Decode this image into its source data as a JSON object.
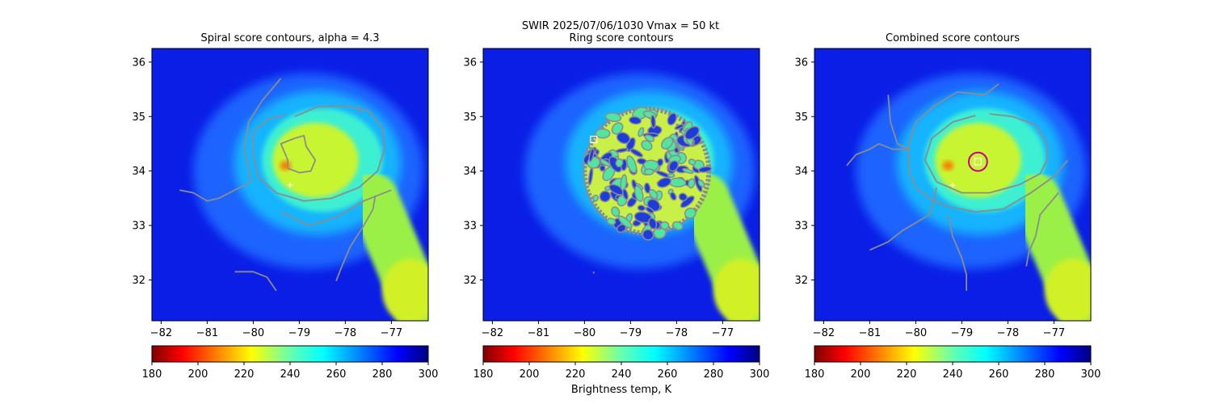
{
  "figure": {
    "suptitle_line1": "SWIR  2025/07/06/1030    Vmax = 50 kt",
    "colorbar_label": "Brightness temp, K"
  },
  "chart_data": [
    {
      "type": "heatmap",
      "title": "Spiral score contours, alpha =  4.3",
      "xlim": [
        -82.2,
        -76.2
      ],
      "ylim": [
        31.25,
        36.25
      ],
      "xticks": [
        -82,
        -81,
        -80,
        -79,
        -78,
        -77
      ],
      "yticks": [
        32,
        33,
        34,
        35,
        36
      ],
      "center": [
        -79.2,
        33.75
      ],
      "center_marker": "plus",
      "contours": [
        [
          [
            -79.1,
            35.0
          ],
          [
            -78.6,
            35.18
          ],
          [
            -78.0,
            35.2
          ],
          [
            -77.5,
            35.1
          ],
          [
            -77.2,
            34.8
          ],
          [
            -77.15,
            34.4
          ],
          [
            -77.3,
            34.0
          ],
          [
            -77.7,
            33.7
          ],
          [
            -78.3,
            33.5
          ],
          [
            -78.9,
            33.45
          ],
          [
            -79.5,
            33.6
          ],
          [
            -79.9,
            33.9
          ],
          [
            -80.0,
            34.3
          ],
          [
            -80.0,
            34.7
          ],
          [
            -79.7,
            34.95
          ],
          [
            -79.3,
            35.02
          ]
        ],
        [
          [
            -79.25,
            34.2
          ],
          [
            -79.4,
            34.5
          ],
          [
            -79.1,
            34.6
          ],
          [
            -78.9,
            34.65
          ],
          [
            -78.85,
            34.45
          ],
          [
            -78.65,
            34.2
          ],
          [
            -78.75,
            34.0
          ],
          [
            -79.0,
            33.97
          ],
          [
            -79.25,
            34.05
          ],
          [
            -79.25,
            34.2
          ]
        ],
        [
          [
            -79.4,
            35.7
          ],
          [
            -79.8,
            35.3
          ],
          [
            -80.1,
            34.9
          ],
          [
            -80.2,
            34.4
          ],
          [
            -80.05,
            33.8
          ],
          [
            -80.4,
            33.65
          ],
          [
            -80.75,
            33.5
          ],
          [
            -81.0,
            33.45
          ],
          [
            -81.3,
            33.6
          ],
          [
            -81.6,
            33.65
          ]
        ],
        [
          [
            -79.4,
            33.25
          ],
          [
            -78.8,
            33.0
          ],
          [
            -78.2,
            33.15
          ],
          [
            -77.6,
            33.45
          ],
          [
            -77.0,
            33.65
          ]
        ],
        [
          [
            -77.35,
            33.55
          ],
          [
            -77.4,
            33.3
          ],
          [
            -77.6,
            33.0
          ],
          [
            -77.9,
            32.6
          ],
          [
            -78.1,
            32.2
          ],
          [
            -78.2,
            31.98
          ]
        ],
        [
          [
            -80.4,
            32.15
          ],
          [
            -80.0,
            32.15
          ],
          [
            -79.7,
            32.05
          ],
          [
            -79.5,
            31.8
          ]
        ],
        [
          [
            -77.7,
            35.2
          ],
          [
            -77.7,
            35.05
          ]
        ]
      ]
    },
    {
      "type": "heatmap",
      "title": "Ring score contours",
      "xlim": [
        -82.2,
        -76.2
      ],
      "ylim": [
        31.25,
        36.25
      ],
      "xticks": [
        -82,
        -81,
        -80,
        -79,
        -78,
        -77
      ],
      "yticks": [
        32,
        33,
        34,
        35,
        36
      ],
      "center": [
        -79.8,
        34.58
      ],
      "center_marker": "square",
      "ring_region": {
        "center": [
          -78.65,
          34.0
        ],
        "radius_deg": 1.35
      },
      "contours": [
        [
          [
            -79.8,
            32.15
          ],
          [
            -79.8,
            32.12
          ]
        ]
      ]
    },
    {
      "type": "heatmap",
      "title": "Combined score contours",
      "xlim": [
        -82.2,
        -76.2
      ],
      "ylim": [
        31.25,
        36.25
      ],
      "xticks": [
        -82,
        -81,
        -80,
        -79,
        -78,
        -77
      ],
      "yticks": [
        32,
        33,
        34,
        35,
        36
      ],
      "center": [
        -78.65,
        34.17
      ],
      "center_marker": "square",
      "fix_circle_radius_deg": 0.2,
      "contours": [
        [
          [
            -78.4,
            35.05
          ],
          [
            -77.9,
            35.0
          ],
          [
            -77.4,
            34.85
          ],
          [
            -77.15,
            34.5
          ],
          [
            -77.15,
            34.2
          ],
          [
            -77.3,
            33.95
          ],
          [
            -77.75,
            33.75
          ],
          [
            -78.4,
            33.6
          ],
          [
            -79.0,
            33.6
          ],
          [
            -79.55,
            33.8
          ],
          [
            -79.8,
            34.2
          ],
          [
            -79.65,
            34.6
          ],
          [
            -79.2,
            34.9
          ],
          [
            -78.7,
            35.02
          ]
        ],
        [
          [
            -78.2,
            35.6
          ],
          [
            -78.5,
            35.4
          ],
          [
            -79.1,
            35.45
          ],
          [
            -79.6,
            35.2
          ],
          [
            -80.0,
            34.9
          ],
          [
            -80.15,
            34.5
          ],
          [
            -80.15,
            34.0
          ],
          [
            -80.0,
            33.7
          ],
          [
            -79.7,
            33.5
          ],
          [
            -79.3,
            33.35
          ],
          [
            -78.7,
            33.25
          ],
          [
            -78.1,
            33.3
          ],
          [
            -77.5,
            33.6
          ],
          [
            -77.0,
            33.9
          ],
          [
            -76.7,
            34.2
          ]
        ],
        [
          [
            -80.6,
            35.4
          ],
          [
            -80.55,
            34.9
          ],
          [
            -80.4,
            34.5
          ],
          [
            -80.15,
            34.4
          ],
          [
            -80.5,
            34.4
          ],
          [
            -80.8,
            34.5
          ],
          [
            -81.0,
            34.4
          ],
          [
            -81.3,
            34.3
          ],
          [
            -81.5,
            34.1
          ]
        ],
        [
          [
            -79.55,
            33.7
          ],
          [
            -79.6,
            33.5
          ],
          [
            -79.7,
            33.2
          ],
          [
            -80.3,
            32.9
          ],
          [
            -80.6,
            32.7
          ],
          [
            -81.0,
            32.55
          ]
        ],
        [
          [
            -79.3,
            33.2
          ],
          [
            -79.2,
            32.8
          ],
          [
            -79.0,
            32.4
          ],
          [
            -78.9,
            32.1
          ],
          [
            -78.9,
            31.8
          ]
        ],
        [
          [
            -76.9,
            33.6
          ],
          [
            -77.3,
            33.2
          ],
          [
            -77.4,
            32.8
          ],
          [
            -77.55,
            32.5
          ],
          [
            -77.6,
            32.25
          ]
        ]
      ]
    }
  ],
  "colorbar": {
    "range": [
      180,
      300
    ],
    "ticks": [
      180,
      200,
      220,
      240,
      260,
      280,
      300
    ],
    "colormap": "jet_reversed"
  },
  "colors": {
    "contour": "#8c8c8c",
    "fix_circle": "#c8008c",
    "marker": "#ffffff",
    "axes": "#000000"
  },
  "scene": {
    "storm_center": [
      -78.5,
      34.2
    ],
    "storm_radius_deg": 1.25,
    "cold_band": {
      "from": [
        -77.4,
        33.5
      ],
      "to": [
        -76.3,
        31.3
      ],
      "half_width_deg": 0.55
    }
  }
}
